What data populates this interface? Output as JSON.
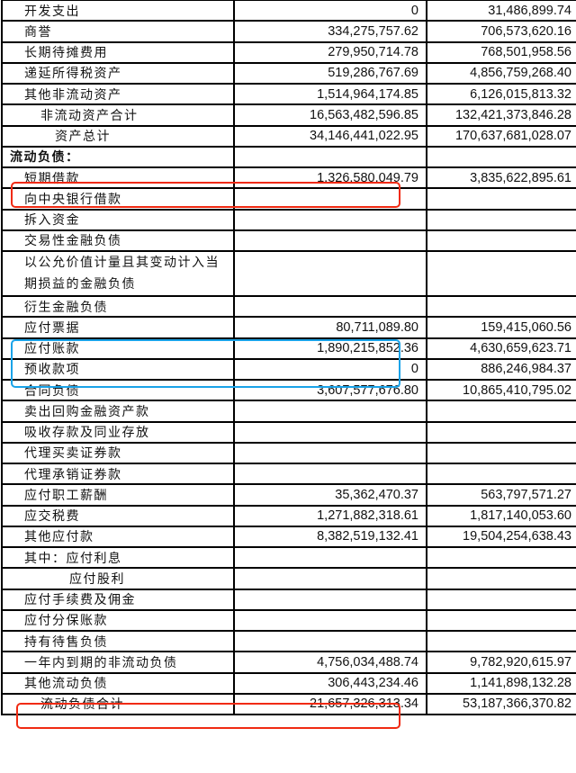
{
  "rows": [
    {
      "label": "开发支出",
      "indent": 1,
      "a": "0",
      "b": "31,486,899.74"
    },
    {
      "label": "商誉",
      "indent": 1,
      "a": "334,275,757.62",
      "b": "706,573,620.16"
    },
    {
      "label": "长期待摊费用",
      "indent": 1,
      "a": "279,950,714.78",
      "b": "768,501,958.56"
    },
    {
      "label": "递延所得税资产",
      "indent": 1,
      "a": "519,286,767.69",
      "b": "4,856,759,268.40"
    },
    {
      "label": "其他非流动资产",
      "indent": 1,
      "a": "1,514,964,174.85",
      "b": "6,126,015,813.32"
    },
    {
      "label": "非流动资产合计",
      "indent": 2,
      "a": "16,563,482,596.85",
      "b": "132,421,373,846.28"
    },
    {
      "label": "资产总计",
      "indent": 3,
      "a": "34,146,441,022.95",
      "b": "170,637,681,028.07"
    },
    {
      "label": "流动负债：",
      "indent": 0,
      "a": "",
      "b": ""
    },
    {
      "label": "短期借款",
      "indent": 1,
      "a": "1,326,580,049.79",
      "b": "3,835,622,895.61"
    },
    {
      "label": "向中央银行借款",
      "indent": 1,
      "a": "",
      "b": ""
    },
    {
      "label": "拆入资金",
      "indent": 1,
      "a": "",
      "b": ""
    },
    {
      "label": "交易性金融负债",
      "indent": 1,
      "a": "",
      "b": ""
    },
    {
      "label": "以公允价值计量且其变动计入当期损益的金融负债",
      "indent": 1,
      "a": "",
      "b": ""
    },
    {
      "label": "衍生金融负债",
      "indent": 1,
      "a": "",
      "b": ""
    },
    {
      "label": "应付票据",
      "indent": 1,
      "a": "80,711,089.80",
      "b": "159,415,060.56"
    },
    {
      "label": "应付账款",
      "indent": 1,
      "a": "1,890,215,852.36",
      "b": "4,630,659,623.71"
    },
    {
      "label": "预收款项",
      "indent": 1,
      "a": "0",
      "b": "886,246,984.37"
    },
    {
      "label": "合同负债",
      "indent": 1,
      "a": "3,607,577,676.80",
      "b": "10,865,410,795.02"
    },
    {
      "label": "卖出回购金融资产款",
      "indent": 1,
      "a": "",
      "b": ""
    },
    {
      "label": "吸收存款及同业存放",
      "indent": 1,
      "a": "",
      "b": ""
    },
    {
      "label": "代理买卖证券款",
      "indent": 1,
      "a": "",
      "b": ""
    },
    {
      "label": "代理承销证券款",
      "indent": 1,
      "a": "",
      "b": ""
    },
    {
      "label": "应付职工薪酬",
      "indent": 1,
      "a": "35,362,470.37",
      "b": "563,797,571.27"
    },
    {
      "label": "应交税费",
      "indent": 1,
      "a": "1,271,882,318.61",
      "b": "1,817,140,053.60"
    },
    {
      "label": "其他应付款",
      "indent": 1,
      "a": "8,382,519,132.41",
      "b": "19,504,254,638.43"
    },
    {
      "label": "其中：应付利息",
      "indent": 1,
      "a": "",
      "b": ""
    },
    {
      "label": "应付股利",
      "indent": 4,
      "a": "",
      "b": ""
    },
    {
      "label": "应付手续费及佣金",
      "indent": 1,
      "a": "",
      "b": ""
    },
    {
      "label": "应付分保账款",
      "indent": 1,
      "a": "",
      "b": ""
    },
    {
      "label": "持有待售负债",
      "indent": 1,
      "a": "",
      "b": ""
    },
    {
      "label": "一年内到期的非流动负债",
      "indent": 1,
      "a": "4,756,034,488.74",
      "b": "9,782,920,615.97"
    },
    {
      "label": "其他流动负债",
      "indent": 1,
      "a": "306,443,234.46",
      "b": "1,141,898,132.28"
    },
    {
      "label": "流动负债合计",
      "indent": 2,
      "a": "21,657,326,313.34",
      "b": "53,187,366,370.82"
    }
  ],
  "highlights": {
    "red": "#f02a12",
    "blue": "#1aa3e8"
  }
}
